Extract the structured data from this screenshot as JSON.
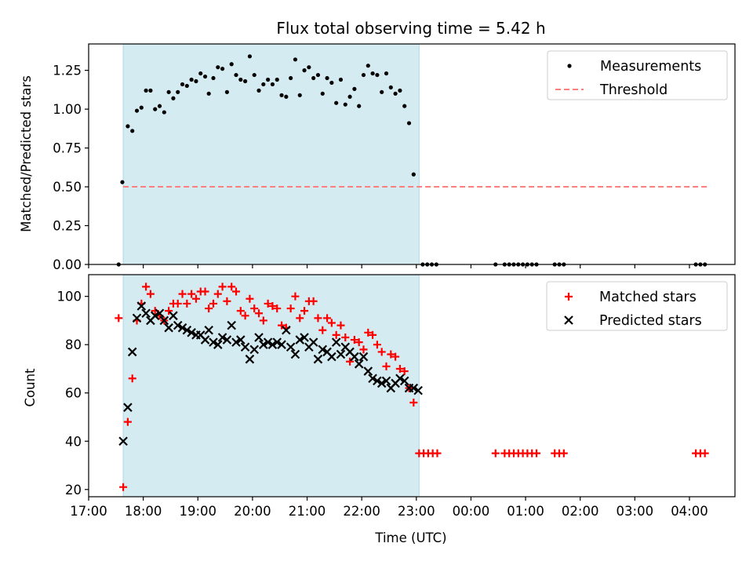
{
  "chart_data": [
    {
      "type": "scatter",
      "title": "Flux total observing time = 5.42 h",
      "xlabel": "",
      "ylabel": "Matched/Predicted stars",
      "xlim": [
        "17:00",
        "04:50"
      ],
      "ylim": [
        0,
        1.42
      ],
      "yticks": [
        "0.00",
        "0.25",
        "0.50",
        "0.75",
        "1.00",
        "1.25"
      ],
      "legend_position": "top-right",
      "shaded_interval": [
        "17:38",
        "23:03"
      ],
      "shade_color": "#d4ebf2",
      "series": [
        {
          "name": "Measurements",
          "kind": "points",
          "color": "#000000",
          "points": [
            [
              "17:33",
              0.0
            ],
            [
              "17:37",
              0.53
            ],
            [
              "17:43",
              0.89
            ],
            [
              "17:48",
              0.86
            ],
            [
              "17:53",
              0.99
            ],
            [
              "17:58",
              1.01
            ],
            [
              "18:03",
              1.12
            ],
            [
              "18:08",
              1.12
            ],
            [
              "18:13",
              1.0
            ],
            [
              "18:18",
              1.02
            ],
            [
              "18:23",
              0.98
            ],
            [
              "18:28",
              1.11
            ],
            [
              "18:33",
              1.07
            ],
            [
              "18:38",
              1.11
            ],
            [
              "18:43",
              1.16
            ],
            [
              "18:48",
              1.15
            ],
            [
              "18:53",
              1.19
            ],
            [
              "18:58",
              1.18
            ],
            [
              "19:03",
              1.23
            ],
            [
              "19:08",
              1.21
            ],
            [
              "19:12",
              1.1
            ],
            [
              "19:17",
              1.2
            ],
            [
              "19:22",
              1.27
            ],
            [
              "19:27",
              1.26
            ],
            [
              "19:32",
              1.11
            ],
            [
              "19:37",
              1.29
            ],
            [
              "19:42",
              1.22
            ],
            [
              "19:47",
              1.19
            ],
            [
              "19:52",
              1.18
            ],
            [
              "19:57",
              1.34
            ],
            [
              "20:02",
              1.22
            ],
            [
              "20:07",
              1.12
            ],
            [
              "20:12",
              1.16
            ],
            [
              "20:17",
              1.19
            ],
            [
              "20:22",
              1.16
            ],
            [
              "20:27",
              1.19
            ],
            [
              "20:32",
              1.09
            ],
            [
              "20:37",
              1.08
            ],
            [
              "20:42",
              1.2
            ],
            [
              "20:47",
              1.32
            ],
            [
              "20:52",
              1.09
            ],
            [
              "20:57",
              1.25
            ],
            [
              "21:02",
              1.27
            ],
            [
              "21:07",
              1.2
            ],
            [
              "21:12",
              1.22
            ],
            [
              "21:17",
              1.1
            ],
            [
              "21:22",
              1.2
            ],
            [
              "21:27",
              1.17
            ],
            [
              "21:32",
              1.04
            ],
            [
              "21:37",
              1.19
            ],
            [
              "21:42",
              1.03
            ],
            [
              "21:47",
              1.08
            ],
            [
              "21:52",
              1.13
            ],
            [
              "21:57",
              1.02
            ],
            [
              "22:02",
              1.22
            ],
            [
              "22:07",
              1.28
            ],
            [
              "22:12",
              1.23
            ],
            [
              "22:17",
              1.22
            ],
            [
              "22:22",
              1.11
            ],
            [
              "22:27",
              1.23
            ],
            [
              "22:32",
              1.14
            ],
            [
              "22:37",
              1.1
            ],
            [
              "22:42",
              1.12
            ],
            [
              "22:47",
              1.02
            ],
            [
              "22:52",
              0.91
            ],
            [
              "22:57",
              0.58
            ],
            [
              "23:07",
              0.0
            ],
            [
              "23:12",
              0.0
            ],
            [
              "23:17",
              0.0
            ],
            [
              "23:22",
              0.0
            ],
            [
              "00:27",
              0.0
            ],
            [
              "00:37",
              0.0
            ],
            [
              "00:42",
              0.0
            ],
            [
              "00:47",
              0.0
            ],
            [
              "00:52",
              0.0
            ],
            [
              "00:57",
              0.0
            ],
            [
              "01:02",
              0.0
            ],
            [
              "01:07",
              0.0
            ],
            [
              "01:12",
              0.0
            ],
            [
              "01:32",
              0.0
            ],
            [
              "01:37",
              0.0
            ],
            [
              "01:42",
              0.0
            ],
            [
              "04:07",
              0.0
            ],
            [
              "04:12",
              0.0
            ],
            [
              "04:17",
              0.0
            ]
          ]
        },
        {
          "name": "Threshold",
          "kind": "dashed-line",
          "color": "#ff7f7f",
          "points": [
            [
              "17:38",
              0.5
            ],
            [
              "04:20",
              0.5
            ]
          ]
        }
      ]
    },
    {
      "type": "scatter",
      "title": "",
      "xlabel": "Time (UTC)",
      "ylabel": "Count",
      "xlim": [
        "17:00",
        "04:50"
      ],
      "ylim": [
        17,
        109
      ],
      "yticks": [
        "20",
        "40",
        "60",
        "80",
        "100"
      ],
      "xticks": [
        "17:00",
        "18:00",
        "19:00",
        "20:00",
        "21:00",
        "22:00",
        "23:00",
        "00:00",
        "01:00",
        "02:00",
        "03:00",
        "04:00"
      ],
      "legend_position": "top-right",
      "shaded_interval": [
        "17:38",
        "23:03"
      ],
      "shade_color": "#d4ebf2",
      "series": [
        {
          "name": "Matched stars",
          "kind": "plus",
          "color": "#ff0000",
          "points": [
            [
              "17:33",
              91
            ],
            [
              "17:38",
              21
            ],
            [
              "17:43",
              48
            ],
            [
              "17:48",
              66
            ],
            [
              "17:53",
              90
            ],
            [
              "17:58",
              97
            ],
            [
              "18:03",
              104
            ],
            [
              "18:08",
              101
            ],
            [
              "18:13",
              94
            ],
            [
              "18:18",
              92
            ],
            [
              "18:23",
              90
            ],
            [
              "18:28",
              94
            ],
            [
              "18:33",
              97
            ],
            [
              "18:38",
              97
            ],
            [
              "18:43",
              101
            ],
            [
              "18:48",
              97
            ],
            [
              "18:53",
              101
            ],
            [
              "18:58",
              99
            ],
            [
              "19:03",
              102
            ],
            [
              "19:08",
              102
            ],
            [
              "19:12",
              95
            ],
            [
              "19:17",
              97
            ],
            [
              "19:22",
              101
            ],
            [
              "19:27",
              104
            ],
            [
              "19:32",
              98
            ],
            [
              "19:37",
              104
            ],
            [
              "19:42",
              102
            ],
            [
              "19:47",
              94
            ],
            [
              "19:52",
              92
            ],
            [
              "19:57",
              99
            ],
            [
              "20:02",
              95
            ],
            [
              "20:07",
              93
            ],
            [
              "20:12",
              90
            ],
            [
              "20:17",
              97
            ],
            [
              "20:22",
              96
            ],
            [
              "20:27",
              95
            ],
            [
              "20:32",
              88
            ],
            [
              "20:37",
              87
            ],
            [
              "20:42",
              95
            ],
            [
              "20:47",
              100
            ],
            [
              "20:52",
              91
            ],
            [
              "20:57",
              94
            ],
            [
              "21:02",
              98
            ],
            [
              "21:07",
              98
            ],
            [
              "21:12",
              91
            ],
            [
              "21:17",
              86
            ],
            [
              "21:22",
              91
            ],
            [
              "21:27",
              89
            ],
            [
              "21:32",
              84
            ],
            [
              "21:37",
              88
            ],
            [
              "21:42",
              83
            ],
            [
              "21:47",
              73
            ],
            [
              "21:52",
              82
            ],
            [
              "21:57",
              81
            ],
            [
              "22:02",
              78
            ],
            [
              "22:07",
              85
            ],
            [
              "22:12",
              84
            ],
            [
              "22:17",
              80
            ],
            [
              "22:22",
              77
            ],
            [
              "22:27",
              71
            ],
            [
              "22:32",
              76
            ],
            [
              "22:37",
              75
            ],
            [
              "22:42",
              70
            ],
            [
              "22:47",
              69
            ],
            [
              "22:52",
              62
            ],
            [
              "22:57",
              56
            ],
            [
              "23:03",
              35
            ],
            [
              "23:08",
              35
            ],
            [
              "23:13",
              35
            ],
            [
              "23:18",
              35
            ],
            [
              "23:23",
              35
            ],
            [
              "00:27",
              35
            ],
            [
              "00:37",
              35
            ],
            [
              "00:42",
              35
            ],
            [
              "00:47",
              35
            ],
            [
              "00:52",
              35
            ],
            [
              "00:57",
              35
            ],
            [
              "01:02",
              35
            ],
            [
              "01:07",
              35
            ],
            [
              "01:12",
              35
            ],
            [
              "01:32",
              35
            ],
            [
              "01:37",
              35
            ],
            [
              "01:42",
              35
            ],
            [
              "04:07",
              35
            ],
            [
              "04:12",
              35
            ],
            [
              "04:17",
              35
            ]
          ]
        },
        {
          "name": "Predicted stars",
          "kind": "x",
          "color": "#000000",
          "points": [
            [
              "17:38",
              40
            ],
            [
              "17:43",
              54
            ],
            [
              "17:48",
              77
            ],
            [
              "17:53",
              91
            ],
            [
              "17:58",
              96
            ],
            [
              "18:03",
              93
            ],
            [
              "18:08",
              90
            ],
            [
              "18:13",
              92
            ],
            [
              "18:18",
              93
            ],
            [
              "18:23",
              90
            ],
            [
              "18:28",
              87
            ],
            [
              "18:33",
              92
            ],
            [
              "18:38",
              88
            ],
            [
              "18:43",
              87
            ],
            [
              "18:48",
              86
            ],
            [
              "18:53",
              85
            ],
            [
              "18:58",
              84
            ],
            [
              "19:03",
              84
            ],
            [
              "19:08",
              82
            ],
            [
              "19:12",
              86
            ],
            [
              "19:17",
              81
            ],
            [
              "19:22",
              80
            ],
            [
              "19:27",
              83
            ],
            [
              "19:32",
              82
            ],
            [
              "19:37",
              88
            ],
            [
              "19:42",
              81
            ],
            [
              "19:47",
              82
            ],
            [
              "19:52",
              79
            ],
            [
              "19:57",
              74
            ],
            [
              "20:02",
              78
            ],
            [
              "20:07",
              83
            ],
            [
              "20:12",
              80
            ],
            [
              "20:17",
              81
            ],
            [
              "20:22",
              80
            ],
            [
              "20:27",
              81
            ],
            [
              "20:32",
              80
            ],
            [
              "20:37",
              86
            ],
            [
              "20:42",
              79
            ],
            [
              "20:47",
              76
            ],
            [
              "20:52",
              82
            ],
            [
              "20:57",
              83
            ],
            [
              "21:02",
              79
            ],
            [
              "21:07",
              81
            ],
            [
              "21:12",
              74
            ],
            [
              "21:17",
              78
            ],
            [
              "21:22",
              77
            ],
            [
              "21:27",
              75
            ],
            [
              "21:32",
              81
            ],
            [
              "21:37",
              76
            ],
            [
              "21:42",
              79
            ],
            [
              "21:47",
              77
            ],
            [
              "21:52",
              75
            ],
            [
              "21:57",
              72
            ],
            [
              "22:02",
              75
            ],
            [
              "22:07",
              69
            ],
            [
              "22:12",
              66
            ],
            [
              "22:17",
              65
            ],
            [
              "22:22",
              64
            ],
            [
              "22:27",
              65
            ],
            [
              "22:32",
              62
            ],
            [
              "22:37",
              64
            ],
            [
              "22:42",
              66
            ],
            [
              "22:47",
              65
            ],
            [
              "22:52",
              62
            ],
            [
              "22:57",
              62
            ],
            [
              "23:02",
              61
            ]
          ]
        }
      ]
    }
  ]
}
